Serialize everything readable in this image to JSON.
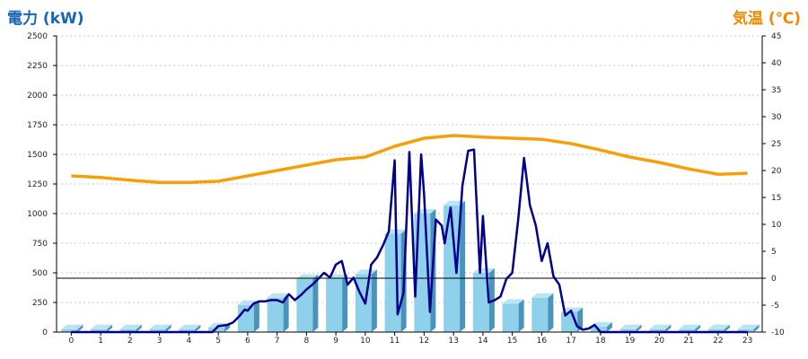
{
  "chart_data": {
    "type": "bar+line",
    "ylabel_left": "電力 (kW)",
    "ylabel_right": "気温 (℃)",
    "ylim_left": [
      0,
      2500
    ],
    "ylim_right": [
      -10,
      45
    ],
    "yticks_left": [
      0,
      250,
      500,
      750,
      1000,
      1250,
      1500,
      1750,
      2000,
      2250,
      2500
    ],
    "yticks_right": [
      -10,
      -5,
      0,
      5,
      10,
      15,
      20,
      25,
      30,
      35,
      40,
      45
    ],
    "categories": [
      "0",
      "1",
      "2",
      "3",
      "4",
      "5",
      "6",
      "7",
      "8",
      "9",
      "10",
      "11",
      "12",
      "13",
      "14",
      "15",
      "16",
      "17",
      "18",
      "19",
      "20",
      "21",
      "22",
      "23"
    ],
    "grid": true,
    "series": [
      {
        "kind": "bar",
        "axis": "left",
        "color": "#87ceeb",
        "values": [
          25,
          25,
          25,
          25,
          25,
          40,
          230,
          290,
          450,
          450,
          490,
          830,
          1000,
          1070,
          500,
          240,
          290,
          170,
          45,
          25,
          25,
          25,
          25,
          25
        ]
      },
      {
        "kind": "line",
        "axis": "left",
        "color": "#00008b",
        "x": [
          0,
          1,
          2,
          3,
          4,
          4.8,
          5,
          5.3,
          5.5,
          5.7,
          5.9,
          6,
          6.2,
          6.4,
          6.6,
          6.8,
          7,
          7.2,
          7.4,
          7.6,
          7.8,
          8,
          8.2,
          8.4,
          8.6,
          8.8,
          9,
          9.2,
          9.4,
          9.6,
          9.8,
          10,
          10.2,
          10.4,
          10.6,
          10.8,
          11,
          11.1,
          11.3,
          11.5,
          11.7,
          11.9,
          12,
          12.2,
          12.4,
          12.6,
          12.7,
          12.9,
          13.1,
          13.3,
          13.5,
          13.7,
          13.9,
          14,
          14.2,
          14.4,
          14.6,
          14.8,
          15,
          15.2,
          15.4,
          15.6,
          15.8,
          16,
          16.2,
          16.4,
          16.6,
          16.8,
          17,
          17.2,
          17.4,
          17.6,
          17.8,
          18,
          19,
          20,
          21,
          22,
          23
        ],
        "values": [
          0,
          0,
          0,
          0,
          0,
          0,
          50,
          60,
          80,
          130,
          190,
          180,
          240,
          260,
          260,
          270,
          270,
          250,
          320,
          270,
          310,
          360,
          400,
          450,
          500,
          460,
          570,
          600,
          400,
          460,
          340,
          240,
          570,
          630,
          730,
          850,
          1450,
          150,
          330,
          1520,
          300,
          1500,
          1160,
          170,
          950,
          900,
          750,
          1050,
          500,
          1230,
          1530,
          1540,
          500,
          980,
          250,
          270,
          300,
          450,
          500,
          950,
          1470,
          1070,
          900,
          600,
          750,
          470,
          400,
          140,
          180,
          50,
          20,
          30,
          60,
          0,
          0,
          0,
          0,
          0,
          0
        ],
        "note": "power"
      },
      {
        "kind": "line",
        "axis": "right",
        "color": "#f5a00a",
        "x": [
          0,
          1,
          2,
          3,
          4,
          5,
          6,
          7,
          8,
          9,
          10,
          11,
          12,
          13,
          14,
          15,
          16,
          17,
          18,
          19,
          20,
          21,
          22,
          23
        ],
        "values": [
          19,
          18.7,
          18.2,
          17.8,
          17.8,
          18,
          19,
          20,
          21,
          22,
          22.5,
          24.5,
          26,
          26.5,
          26.2,
          26,
          25.8,
          25,
          23.8,
          22.5,
          21.5,
          20.3,
          19.3,
          19.5
        ]
      }
    ]
  }
}
